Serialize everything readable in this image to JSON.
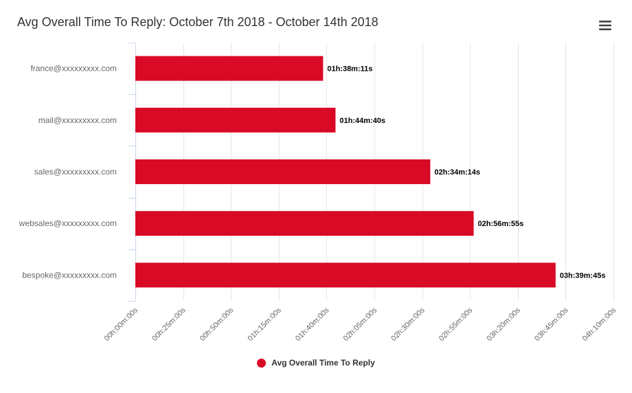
{
  "chart_data": {
    "type": "bar",
    "orientation": "horizontal",
    "title": "Avg Overall Time To Reply: October 7th 2018 - October 14th 2018",
    "categories": [
      "france@xxxxxxxxx.com",
      "mail@xxxxxxxxx.com",
      "sales@xxxxxxxxx.com",
      "websales@xxxxxxxxx.com",
      "bespoke@xxxxxxxxx.com"
    ],
    "series": [
      {
        "name": "Avg Overall Time To Reply",
        "color": "#d90a25",
        "values": [
          5891,
          6280,
          9254,
          10615,
          13185
        ],
        "data_labels": [
          "01h:38m:11s",
          "01h:44m:40s",
          "02h:34m:14s",
          "02h:56m:55s",
          "03h:39m:45s"
        ]
      }
    ],
    "value_unit": "seconds",
    "xlim": [
      0,
      15000
    ],
    "x_ticks": [
      0,
      1500,
      3000,
      4500,
      6000,
      7500,
      9000,
      10500,
      12000,
      13500,
      15000
    ],
    "x_tick_labels": [
      "00h:00m:00s",
      "00h:25m:00s",
      "00h:50m:00s",
      "01h:15m:00s",
      "01h:40m:00s",
      "02h:05m:00s",
      "02h:30m:00s",
      "02h:55m:00s",
      "03h:20m:00s",
      "03h:45m:00s",
      "04h:10m:00s"
    ],
    "xlabel": "",
    "ylabel": "",
    "grid": true,
    "legend": "bottom-center"
  },
  "menu": {
    "icon": "hamburger-menu-icon"
  }
}
